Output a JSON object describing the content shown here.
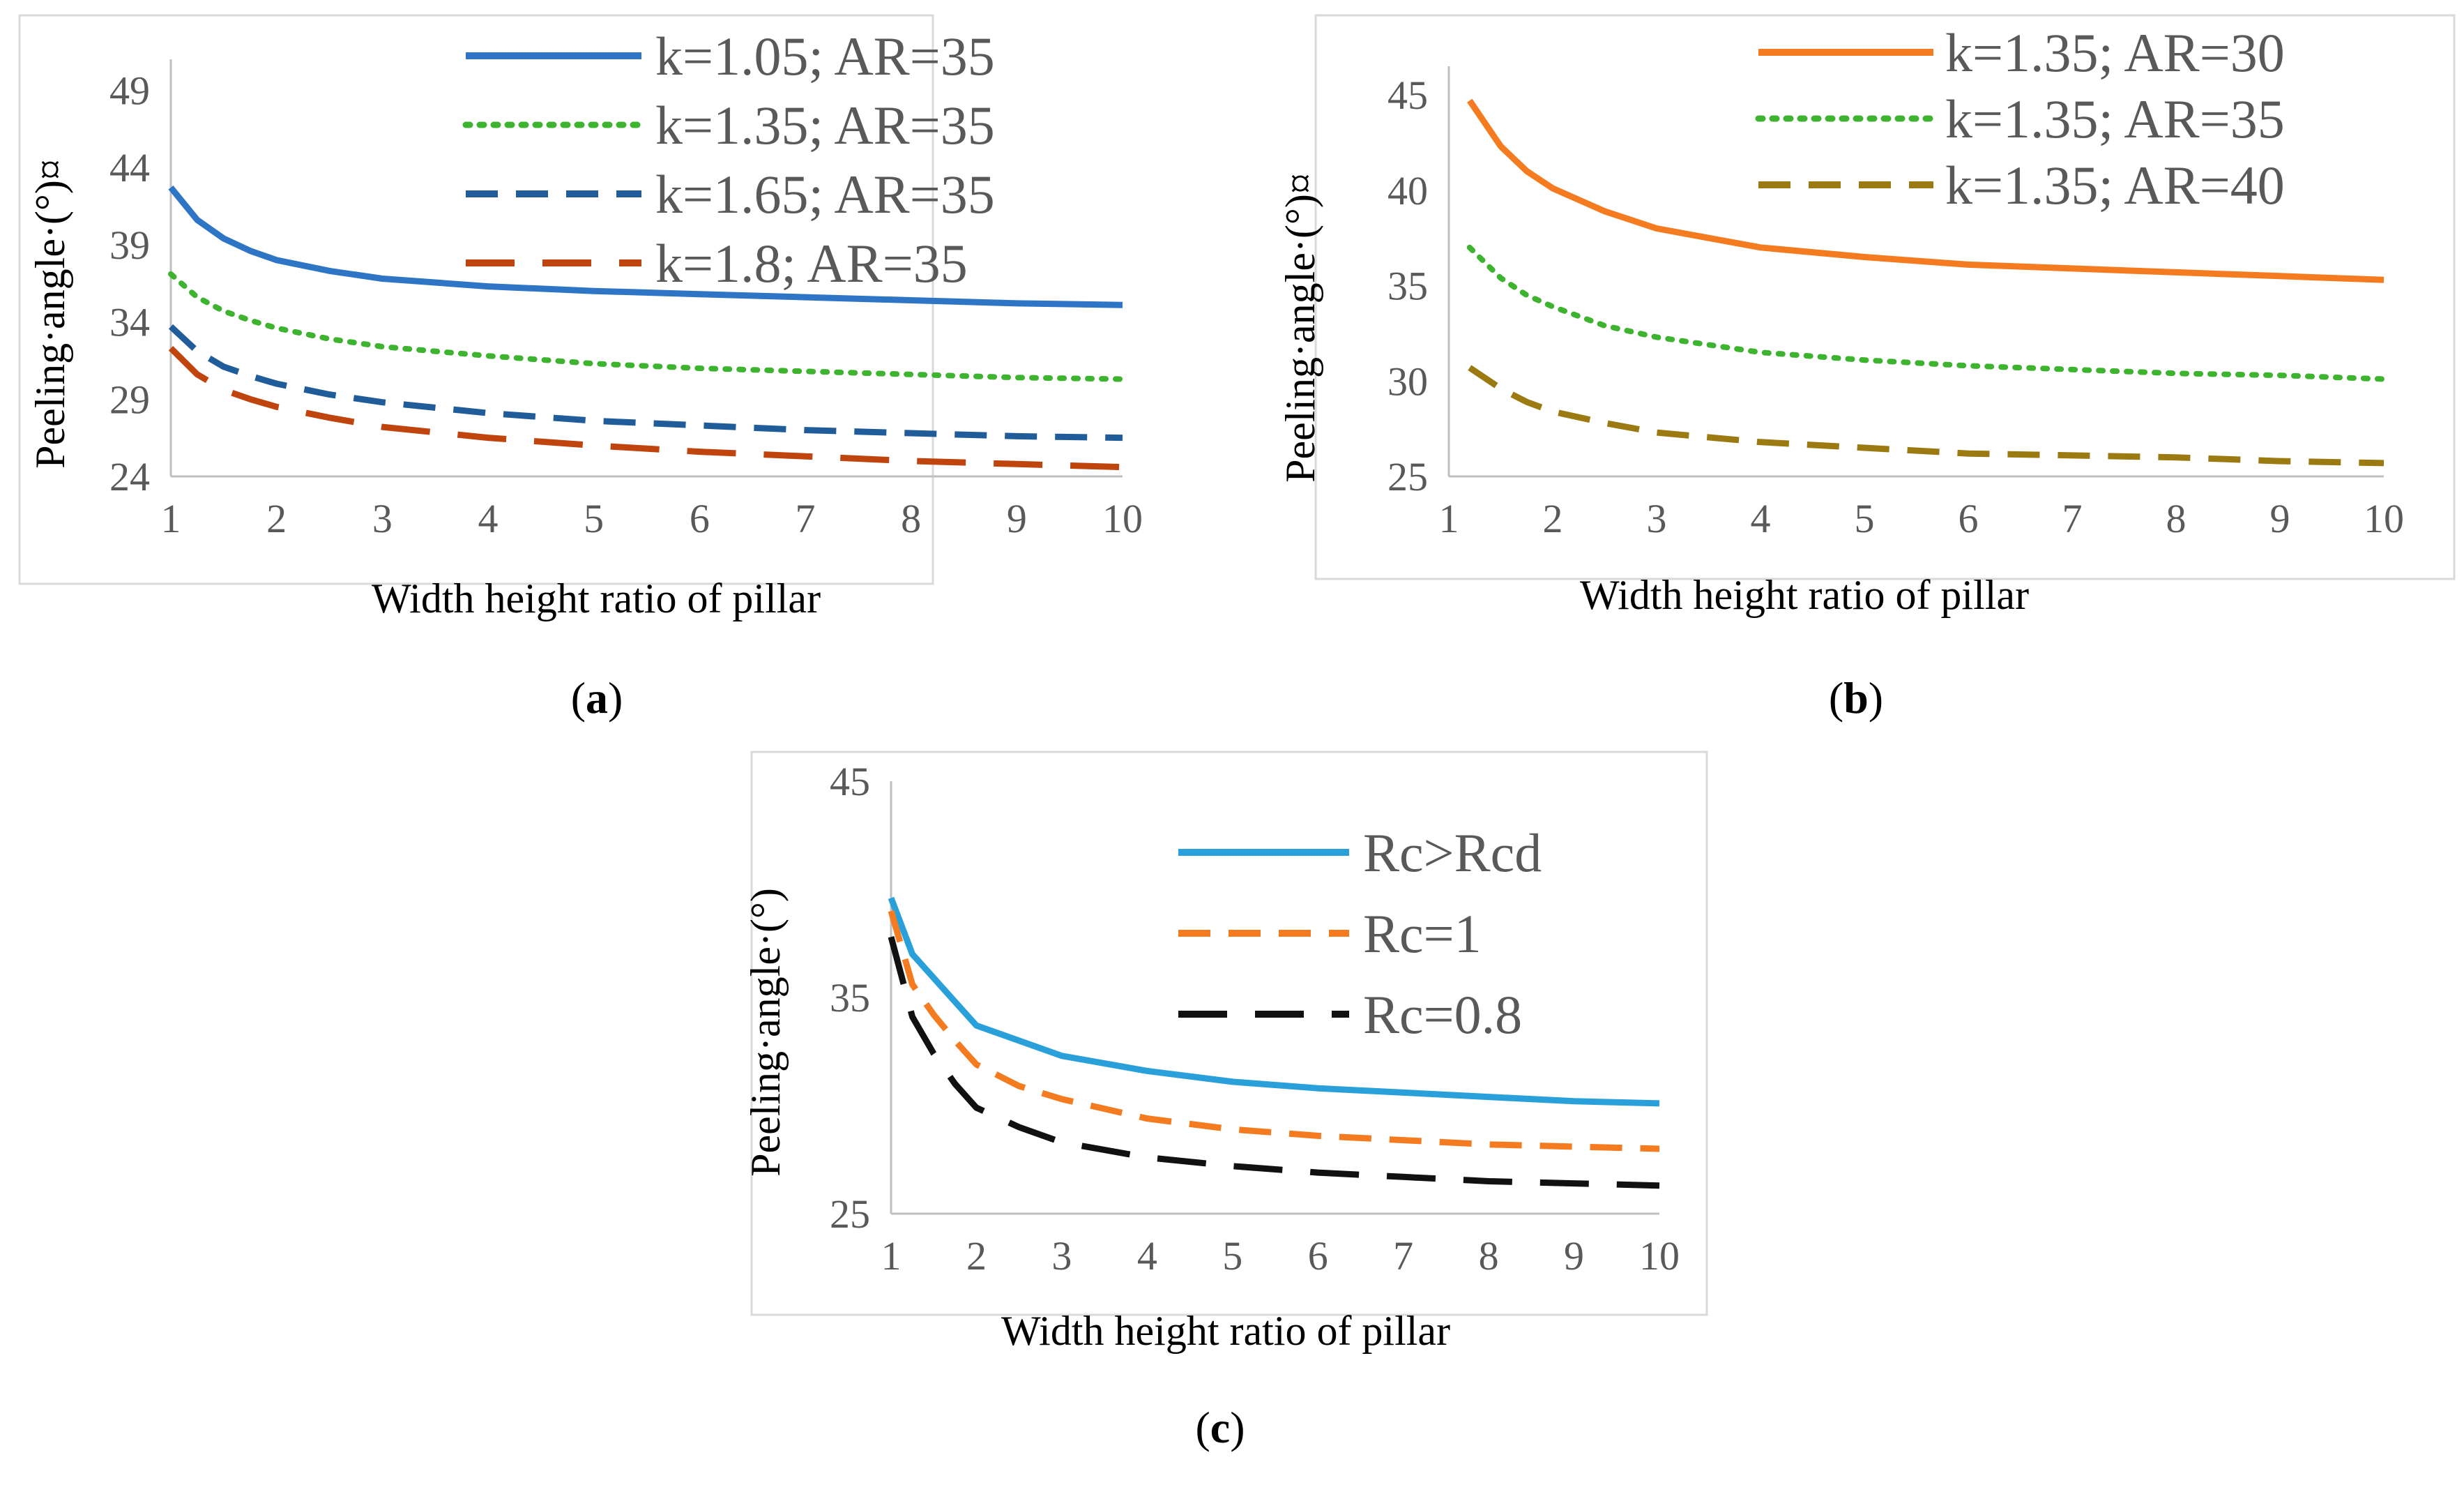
{
  "chart_data": [
    {
      "type": "line",
      "panel": "a",
      "caption_letter": "a",
      "title": "",
      "xlabel": "Width height ratio of pillar",
      "ylabel": "Peeling·angle·(°)¤",
      "x": [
        1,
        1.25,
        1.5,
        1.75,
        2,
        2.5,
        3,
        4,
        5,
        6,
        7,
        8,
        9,
        10
      ],
      "xticks": [
        1,
        2,
        3,
        4,
        5,
        6,
        7,
        8,
        9,
        10
      ],
      "yticks": [
        24,
        29,
        34,
        39,
        44,
        49
      ],
      "xlim": [
        1,
        10
      ],
      "ylim": [
        24,
        51
      ],
      "grid": false,
      "legend_position": "top-right",
      "series": [
        {
          "name": "k=1.05; AR=35",
          "color": "#2E75C6",
          "dash": "solid",
          "values": [
            42.7,
            40.6,
            39.4,
            38.6,
            38.0,
            37.3,
            36.8,
            36.3,
            36.0,
            35.8,
            35.6,
            35.4,
            35.2,
            35.1
          ]
        },
        {
          "name": "k=1.35; AR=35",
          "color": "#3DB32F",
          "dash": "dotted",
          "values": [
            37.1,
            35.6,
            34.7,
            34.1,
            33.6,
            32.9,
            32.4,
            31.8,
            31.3,
            31.0,
            30.8,
            30.6,
            30.4,
            30.3
          ]
        },
        {
          "name": "k=1.65; AR=35",
          "color": "#1F5C99",
          "dash": "dashed",
          "values": [
            33.7,
            32.1,
            31.1,
            30.5,
            30.0,
            29.3,
            28.8,
            28.1,
            27.6,
            27.3,
            27.0,
            26.8,
            26.6,
            26.5
          ]
        },
        {
          "name": "k=1.8; AR=35",
          "color": "#C0440E",
          "dash": "longdash",
          "values": [
            32.3,
            30.6,
            29.6,
            29.0,
            28.5,
            27.8,
            27.2,
            26.5,
            26.0,
            25.6,
            25.3,
            25.0,
            24.8,
            24.6
          ]
        }
      ]
    },
    {
      "type": "line",
      "panel": "b",
      "caption_letter": "b",
      "title": "",
      "xlabel": "Width height ratio of pillar",
      "ylabel": "Peeling·angle·(°)¤",
      "x": [
        1.2,
        1.5,
        1.75,
        2,
        2.5,
        3,
        4,
        5,
        6,
        7,
        8,
        9,
        10
      ],
      "xticks": [
        1,
        2,
        3,
        4,
        5,
        6,
        7,
        8,
        9,
        10
      ],
      "yticks": [
        25,
        30,
        35,
        40,
        45
      ],
      "xlim": [
        1,
        10
      ],
      "ylim": [
        25,
        46.5
      ],
      "grid": false,
      "legend_position": "top-right",
      "series": [
        {
          "name": "k=1.35; AR=30",
          "color": "#F47B20",
          "dash": "solid",
          "values": [
            44.7,
            42.3,
            41.0,
            40.1,
            38.9,
            38.0,
            37.0,
            36.5,
            36.1,
            35.9,
            35.7,
            35.5,
            35.3
          ]
        },
        {
          "name": "k=1.35; AR=35",
          "color": "#3DB32F",
          "dash": "dotted",
          "values": [
            37.0,
            35.4,
            34.5,
            33.9,
            32.9,
            32.3,
            31.5,
            31.1,
            30.8,
            30.6,
            30.4,
            30.3,
            30.1
          ]
        },
        {
          "name": "k=1.35; AR=40",
          "color": "#9C7A12",
          "dash": "dashed",
          "values": [
            30.7,
            29.6,
            28.9,
            28.4,
            27.8,
            27.3,
            26.8,
            26.5,
            26.2,
            26.1,
            26.0,
            25.8,
            25.7
          ]
        }
      ]
    },
    {
      "type": "line",
      "panel": "c",
      "caption_letter": "c",
      "title": "",
      "xlabel": "Width height ratio of pillar",
      "ylabel": "Peeling·angle·(°)",
      "x": [
        1,
        1.25,
        1.5,
        1.75,
        2,
        2.5,
        3,
        4,
        5,
        6,
        7,
        8,
        9,
        10
      ],
      "xticks": [
        1,
        2,
        3,
        4,
        5,
        6,
        7,
        8,
        9,
        10
      ],
      "yticks": [
        25,
        35,
        45
      ],
      "xlim": [
        1,
        10
      ],
      "ylim": [
        25,
        45
      ],
      "grid": false,
      "legend_position": "top-right",
      "series": [
        {
          "name": "Rc>Rcd",
          "color": "#2AA0DB",
          "dash": "solid",
          "values": [
            39.6,
            37.0,
            35.9,
            34.8,
            33.7,
            33.0,
            32.3,
            31.6,
            31.1,
            30.8,
            30.6,
            30.4,
            30.2,
            30.1
          ]
        },
        {
          "name": "Rc=1",
          "color": "#F47B20",
          "dash": "dashed",
          "values": [
            39.0,
            35.6,
            34.2,
            33.0,
            31.9,
            30.9,
            30.3,
            29.4,
            28.9,
            28.6,
            28.4,
            28.2,
            28.1,
            28.0
          ]
        },
        {
          "name": "Rc=0.8",
          "color": "#111111",
          "dash": "longdash",
          "values": [
            37.8,
            34.1,
            32.4,
            31.0,
            29.9,
            29.0,
            28.3,
            27.6,
            27.2,
            26.9,
            26.7,
            26.5,
            26.4,
            26.3
          ]
        }
      ]
    }
  ]
}
